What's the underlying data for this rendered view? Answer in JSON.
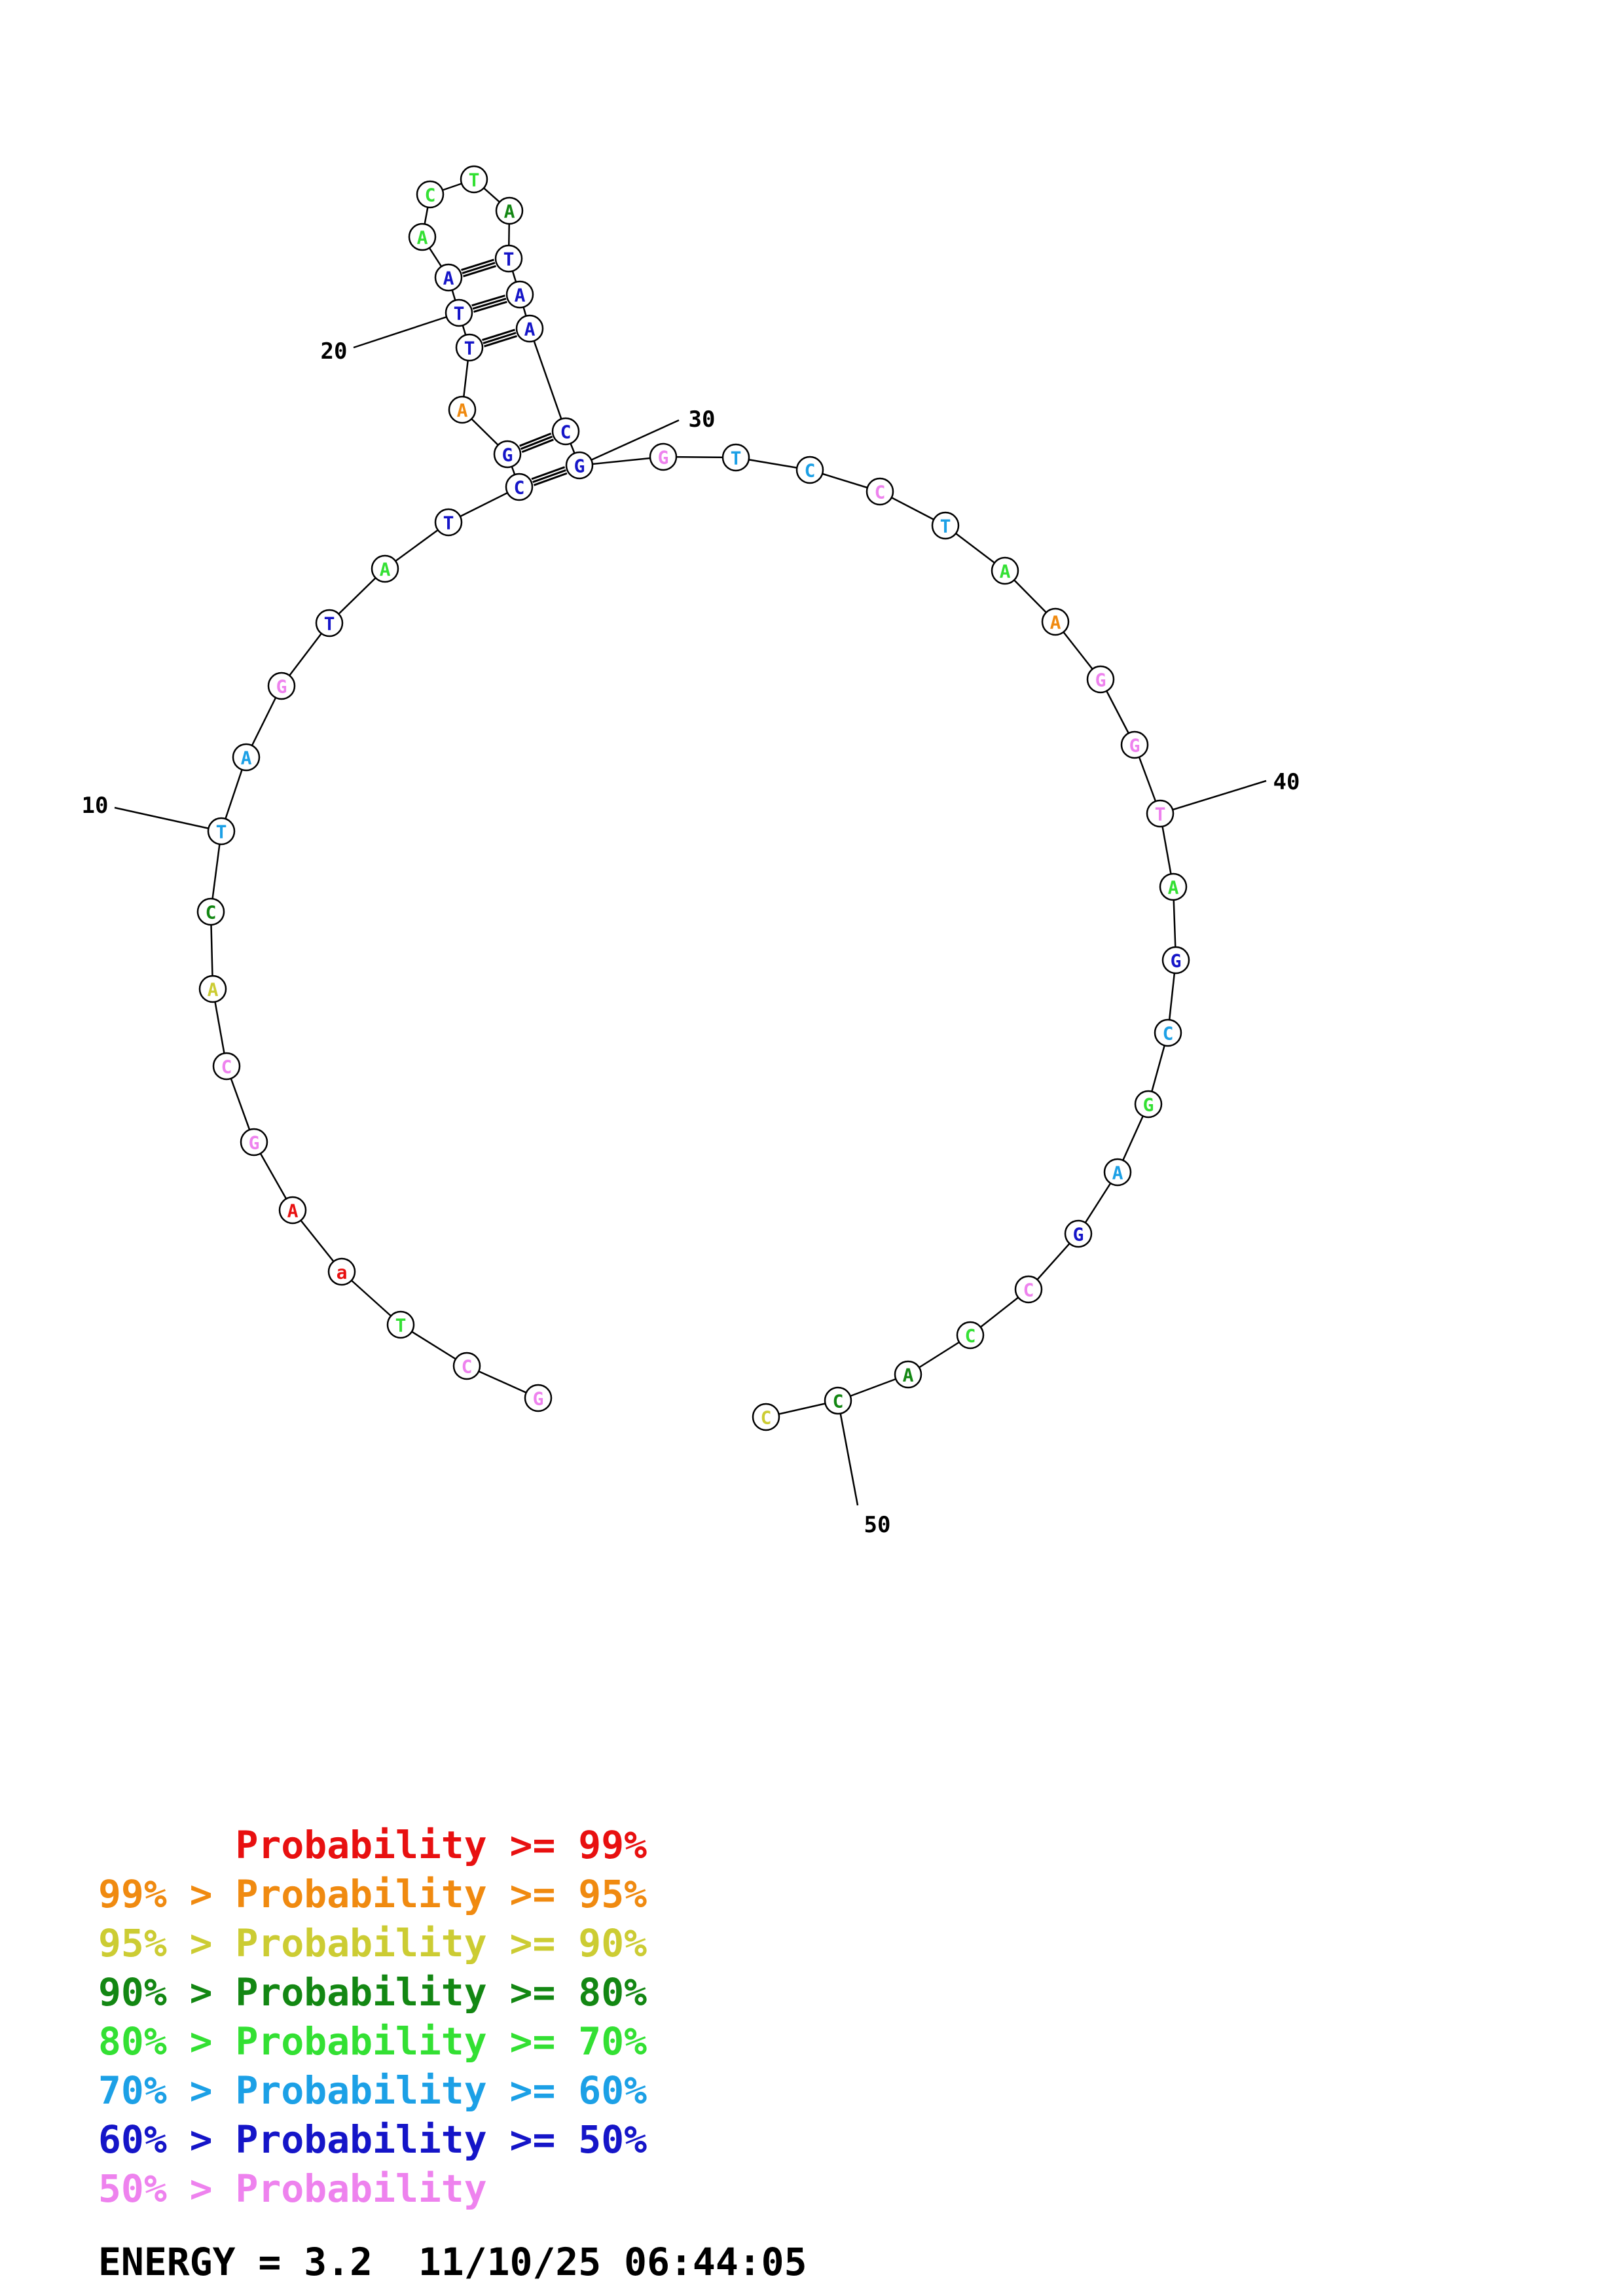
{
  "nucleotides": [
    {
      "n": 1,
      "base": "G",
      "color": "#ee82ee"
    },
    {
      "n": 2,
      "base": "C",
      "color": "#ee82ee"
    },
    {
      "n": 3,
      "base": "T",
      "color": "#33e033"
    },
    {
      "n": 4,
      "base": "a",
      "color": "#e81010"
    },
    {
      "n": 5,
      "base": "A",
      "color": "#e81010"
    },
    {
      "n": 6,
      "base": "G",
      "color": "#ee82ee"
    },
    {
      "n": 7,
      "base": "C",
      "color": "#ee82ee"
    },
    {
      "n": 8,
      "base": "A",
      "color": "#cccc33"
    },
    {
      "n": 9,
      "base": "C",
      "color": "#138713"
    },
    {
      "n": 10,
      "base": "T",
      "color": "#1ca0e6"
    },
    {
      "n": 11,
      "base": "A",
      "color": "#1ca0e6"
    },
    {
      "n": 12,
      "base": "G",
      "color": "#ee82ee"
    },
    {
      "n": 13,
      "base": "T",
      "color": "#1515c8"
    },
    {
      "n": 14,
      "base": "A",
      "color": "#33e033"
    },
    {
      "n": 15,
      "base": "T",
      "color": "#1515c8"
    },
    {
      "n": 16,
      "base": "C",
      "color": "#1515c8"
    },
    {
      "n": 17,
      "base": "G",
      "color": "#1515c8"
    },
    {
      "n": 18,
      "base": "A",
      "color": "#f08a10"
    },
    {
      "n": 19,
      "base": "T",
      "color": "#1515c8"
    },
    {
      "n": 20,
      "base": "T",
      "color": "#1515c8"
    },
    {
      "n": 21,
      "base": "A",
      "color": "#1515c8"
    },
    {
      "n": 22,
      "base": "A",
      "color": "#33e033"
    },
    {
      "n": 23,
      "base": "C",
      "color": "#33e033"
    },
    {
      "n": 24,
      "base": "T",
      "color": "#33e033"
    },
    {
      "n": 25,
      "base": "A",
      "color": "#138713"
    },
    {
      "n": 26,
      "base": "T",
      "color": "#1515c8"
    },
    {
      "n": 27,
      "base": "A",
      "color": "#1515c8"
    },
    {
      "n": 28,
      "base": "A",
      "color": "#1515c8"
    },
    {
      "n": 29,
      "base": "C",
      "color": "#1515c8"
    },
    {
      "n": 30,
      "base": "G",
      "color": "#1515c8"
    },
    {
      "n": 31,
      "base": "G",
      "color": "#ee82ee"
    },
    {
      "n": 32,
      "base": "T",
      "color": "#1ca0e6"
    },
    {
      "n": 33,
      "base": "C",
      "color": "#1ca0e6"
    },
    {
      "n": 34,
      "base": "C",
      "color": "#ee82ee"
    },
    {
      "n": 35,
      "base": "T",
      "color": "#1ca0e6"
    },
    {
      "n": 36,
      "base": "A",
      "color": "#33e033"
    },
    {
      "n": 37,
      "base": "A",
      "color": "#f08a10"
    },
    {
      "n": 38,
      "base": "G",
      "color": "#ee82ee"
    },
    {
      "n": 39,
      "base": "G",
      "color": "#ee82ee"
    },
    {
      "n": 40,
      "base": "T",
      "color": "#ee82ee"
    },
    {
      "n": 41,
      "base": "A",
      "color": "#33e033"
    },
    {
      "n": 42,
      "base": "G",
      "color": "#1515c8"
    },
    {
      "n": 43,
      "base": "C",
      "color": "#1ca0e6"
    },
    {
      "n": 44,
      "base": "G",
      "color": "#33e033"
    },
    {
      "n": 45,
      "base": "A",
      "color": "#1ca0e6"
    },
    {
      "n": 46,
      "base": "G",
      "color": "#1515c8"
    },
    {
      "n": 47,
      "base": "C",
      "color": "#ee82ee"
    },
    {
      "n": 48,
      "base": "C",
      "color": "#33e033"
    },
    {
      "n": 49,
      "base": "A",
      "color": "#138713"
    },
    {
      "n": 50,
      "base": "C",
      "color": "#138713"
    },
    {
      "n": 51,
      "base": "C",
      "color": "#cccc33"
    }
  ],
  "base_pairs": [
    [
      16,
      30
    ],
    [
      17,
      29
    ],
    [
      19,
      28
    ],
    [
      20,
      27
    ],
    [
      21,
      26
    ]
  ],
  "tick_labels": [
    {
      "n": 10,
      "label": "10"
    },
    {
      "n": 20,
      "label": "20"
    },
    {
      "n": 30,
      "label": "30"
    },
    {
      "n": 40,
      "label": "40"
    },
    {
      "n": 50,
      "label": "50"
    }
  ],
  "legend": [
    {
      "prefix": "       ",
      "text": "Probability >= 99%",
      "color": "#e81010"
    },
    {
      "prefix": "99% > ",
      "text": "Probability >= 95%",
      "color": "#f08a10"
    },
    {
      "prefix": "95% > ",
      "text": "Probability >= 90%",
      "color": "#cccc33"
    },
    {
      "prefix": "90% > ",
      "text": "Probability >= 80%",
      "color": "#138713"
    },
    {
      "prefix": "80% > ",
      "text": "Probability >= 70%",
      "color": "#33e033"
    },
    {
      "prefix": "70% > ",
      "text": "Probability >= 60%",
      "color": "#1ca0e6"
    },
    {
      "prefix": "60% > ",
      "text": "Probability >= 50%",
      "color": "#1515c8"
    },
    {
      "prefix": "50% > ",
      "text": "Probability",
      "color": "#ee82ee"
    }
  ],
  "energy": "ENERGY = 3.2",
  "timestamp": "11/10/25 06:44:05"
}
